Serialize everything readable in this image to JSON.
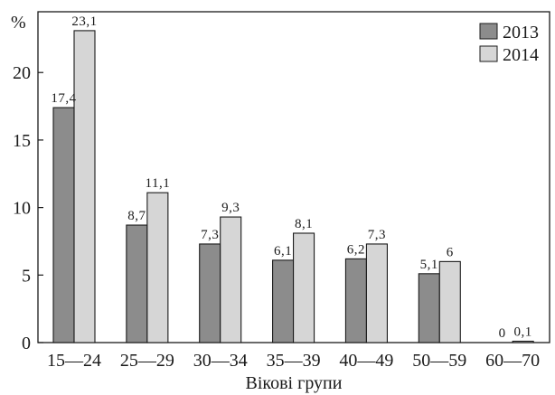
{
  "chart_data": {
    "type": "bar",
    "title": "",
    "xlabel": "Вікові групи",
    "ylabel": "%",
    "ylim": [
      0,
      24.5
    ],
    "yticks": [
      0,
      5,
      10,
      15,
      20
    ],
    "categories": [
      "15—24",
      "25—29",
      "30—34",
      "35—39",
      "40—49",
      "50—59",
      "60—70"
    ],
    "series": [
      {
        "name": "2013",
        "color": "#8c8c8c",
        "values": [
          17.4,
          8.7,
          7.3,
          6.1,
          6.2,
          5.1,
          0
        ],
        "labels": [
          "17,4",
          "8,7",
          "7,3",
          "6,1",
          "6,2",
          "5,1",
          "0"
        ]
      },
      {
        "name": "2014",
        "color": "#d6d6d6",
        "values": [
          23.1,
          11.1,
          9.3,
          8.1,
          7.3,
          6,
          0.1
        ],
        "labels": [
          "23,1",
          "11,1",
          "9,3",
          "8,1",
          "7,3",
          "6",
          "0,1"
        ]
      }
    ],
    "legend": "top-right",
    "grid": false
  }
}
